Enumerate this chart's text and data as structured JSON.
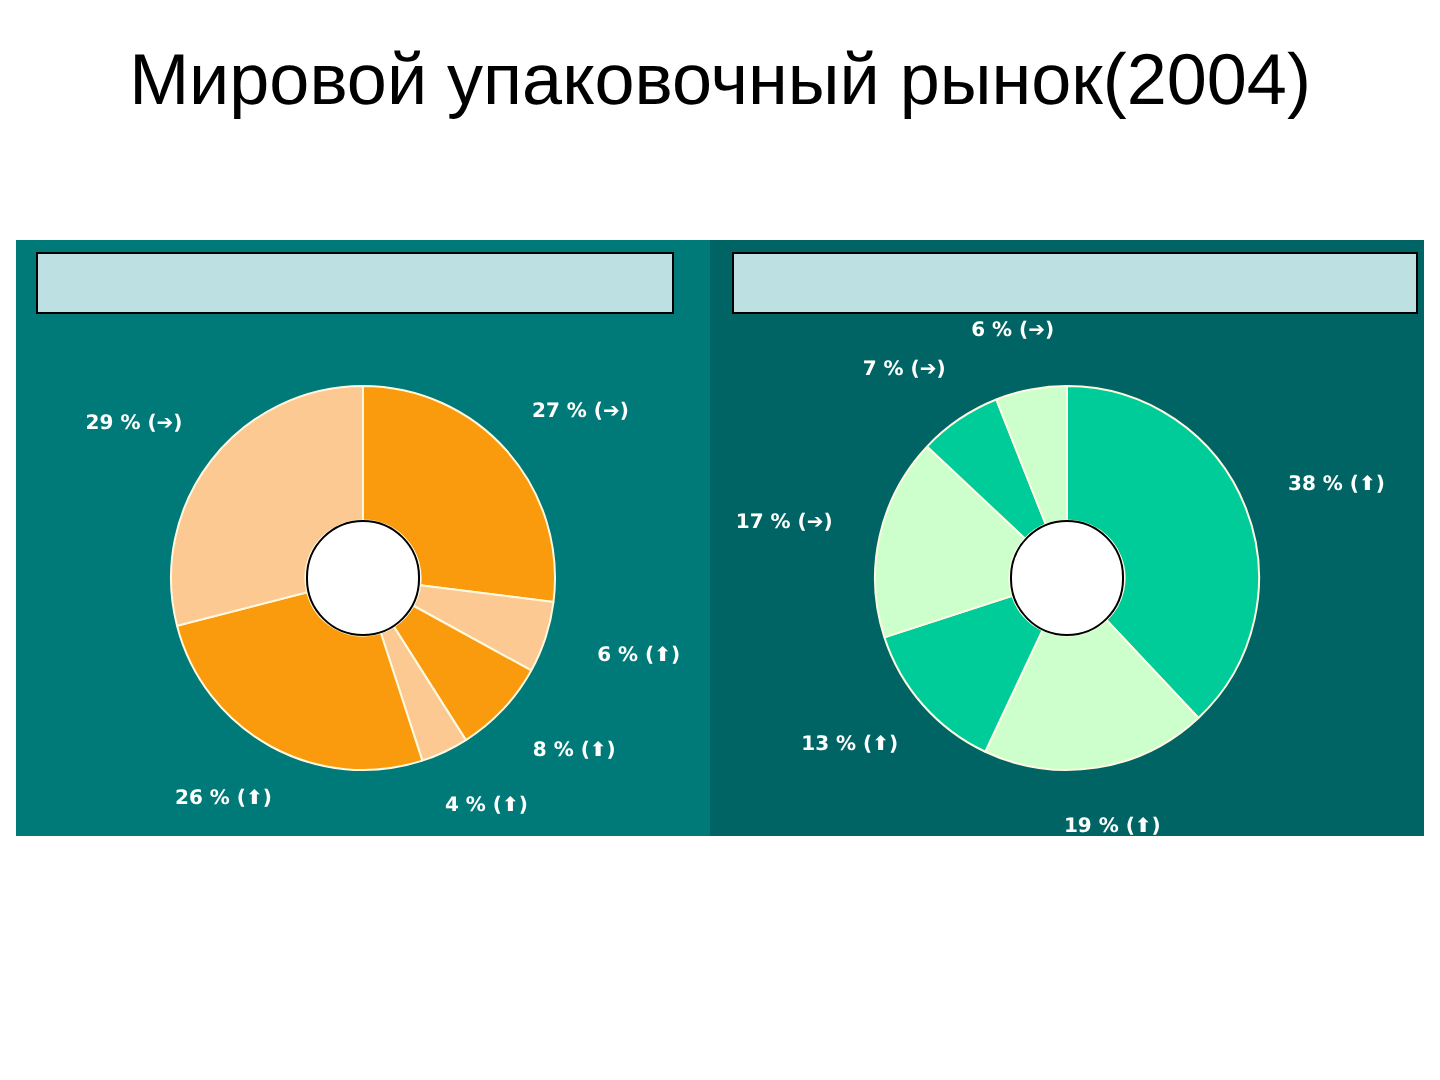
{
  "chart_data": [
    {
      "type": "donut",
      "title": "Мировой упаковочный рынок(2004)",
      "categories": [
        null,
        null,
        null,
        null,
        null,
        null
      ],
      "values": [
        27,
        6,
        8,
        4,
        26,
        29
      ],
      "colors": [
        "#f99b0c",
        "#fcc992",
        "#f99b0c",
        "#fcc992",
        "#f99b0c",
        "#fcc992"
      ],
      "value_labels": [
        "27 % (➔)",
        "6 % (⬆)",
        "8 % (⬆)",
        "4 % (⬆)",
        "26 % (⬆)",
        "29 % (➔)"
      ],
      "legend": false
    },
    {
      "type": "donut",
      "categories": [
        null,
        null,
        null,
        null,
        null,
        null
      ],
      "values": [
        38,
        19,
        13,
        17,
        7,
        6
      ],
      "colors": [
        "#00cc99",
        "#ccffcc",
        "#00cc99",
        "#ccffcc",
        "#00cc99",
        "#ccffcc"
      ],
      "value_labels": [
        "38 % (⬆)",
        "19 % (⬆)",
        "13 % (⬆)",
        "17 % (➔)",
        "7 % (➔)",
        "6 % (➔)"
      ],
      "legend": false
    }
  ]
}
